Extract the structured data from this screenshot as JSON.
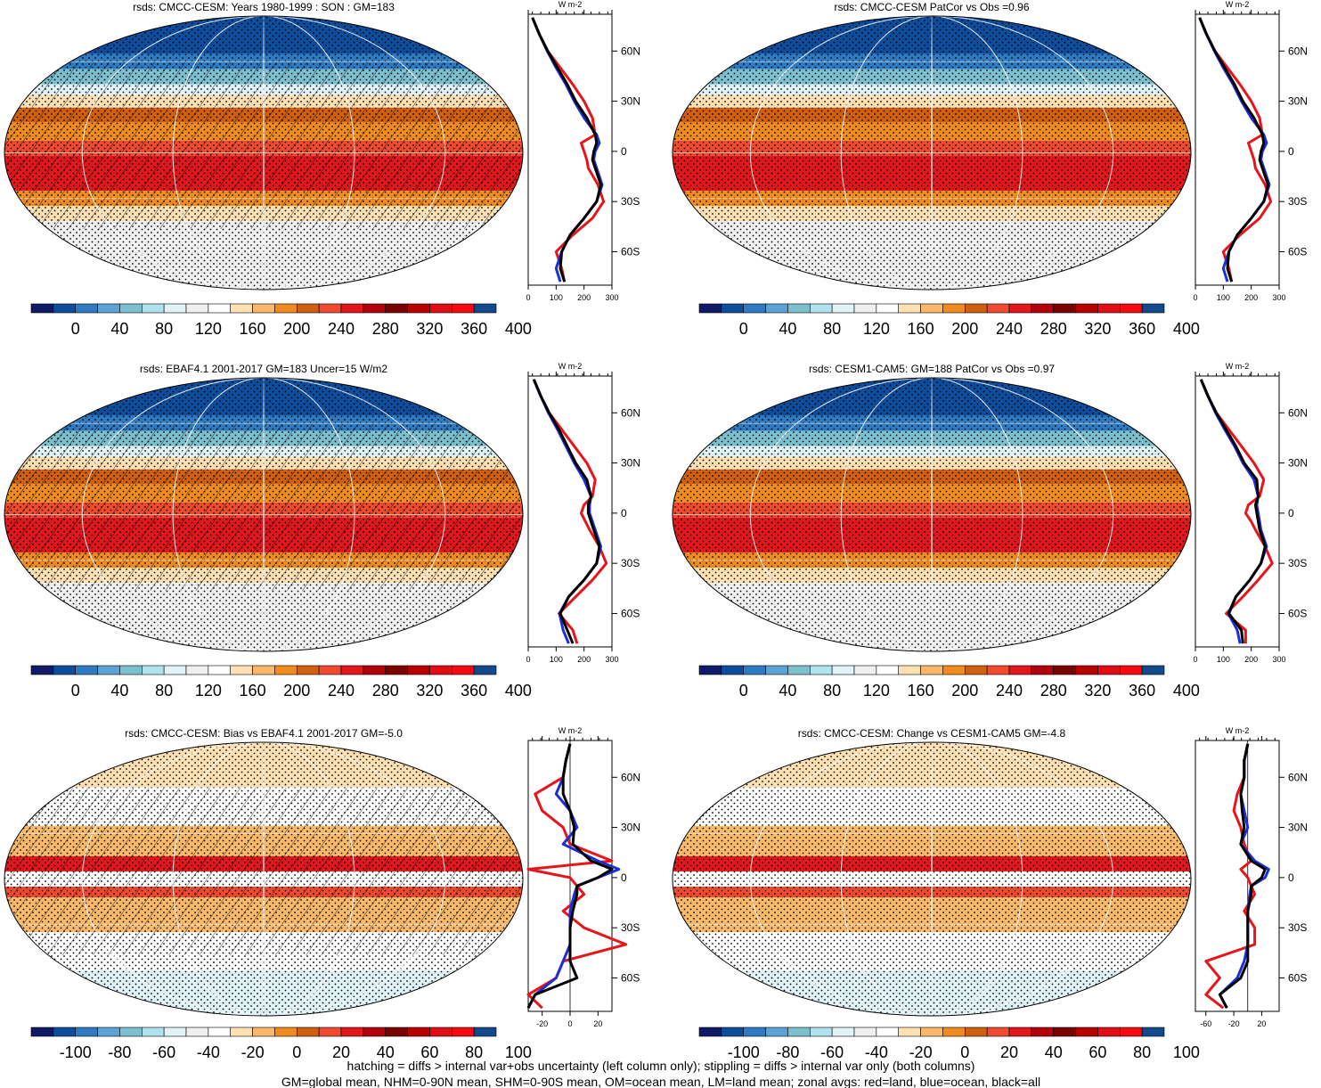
{
  "chart_data": [
    {
      "type": "heatmap",
      "title": "rsds: CMCC-CESM: Years 1980-1999 : SON : GM=183",
      "colorbar": [
        "0",
        "40",
        "80",
        "120",
        "160",
        "200",
        "240",
        "280",
        "320",
        "360",
        "400"
      ],
      "zonal_xticks": [
        "0",
        "100",
        "200",
        "300"
      ],
      "zonal_unit": "W m-2",
      "lat_labels": [
        "60N",
        "30N",
        "0",
        "30S",
        "60S"
      ],
      "hatching": true,
      "zonal": {
        "lat": [
          80,
          70,
          60,
          50,
          40,
          30,
          20,
          10,
          5,
          0,
          -5,
          -10,
          -20,
          -30,
          -40,
          -50,
          -60,
          -70,
          -78
        ],
        "all": [
          15,
          40,
          70,
          105,
          140,
          170,
          210,
          240,
          245,
          235,
          230,
          240,
          260,
          245,
          200,
          150,
          120,
          115,
          130
        ],
        "land": [
          15,
          40,
          70,
          115,
          160,
          200,
          230,
          240,
          190,
          200,
          210,
          215,
          250,
          270,
          230,
          160,
          100,
          120,
          130
        ],
        "ocean": [
          15,
          40,
          68,
          100,
          135,
          165,
          200,
          245,
          255,
          240,
          235,
          245,
          265,
          245,
          200,
          150,
          120,
          100,
          115
        ]
      }
    },
    {
      "type": "heatmap",
      "title": "rsds: CMCC-CESM PatCor vs Obs =0.96",
      "colorbar": [
        "0",
        "40",
        "80",
        "120",
        "160",
        "200",
        "240",
        "280",
        "320",
        "360",
        "400"
      ],
      "zonal_xticks": [
        "0",
        "100",
        "200",
        "300"
      ],
      "zonal_unit": "W m-2",
      "lat_labels": [
        "60N",
        "30N",
        "0",
        "30S",
        "60S"
      ],
      "hatching": false,
      "zonal": {
        "lat": [
          80,
          70,
          60,
          50,
          40,
          30,
          20,
          10,
          5,
          0,
          -5,
          -10,
          -20,
          -30,
          -40,
          -50,
          -60,
          -70,
          -78
        ],
        "all": [
          15,
          40,
          70,
          105,
          140,
          170,
          210,
          240,
          245,
          235,
          230,
          240,
          260,
          245,
          200,
          150,
          120,
          115,
          130
        ],
        "land": [
          15,
          40,
          70,
          115,
          160,
          200,
          230,
          240,
          190,
          200,
          210,
          215,
          250,
          270,
          230,
          160,
          100,
          120,
          130
        ],
        "ocean": [
          15,
          40,
          68,
          100,
          135,
          165,
          200,
          245,
          255,
          240,
          235,
          245,
          265,
          245,
          200,
          150,
          120,
          100,
          115
        ]
      }
    },
    {
      "type": "heatmap",
      "title": "rsds: EBAF4.1 2001-2017 GM=183 Uncer=15 W/m2",
      "colorbar": [
        "0",
        "40",
        "80",
        "120",
        "160",
        "200",
        "240",
        "280",
        "320",
        "360",
        "400"
      ],
      "zonal_xticks": [
        "0",
        "100",
        "200",
        "300"
      ],
      "zonal_unit": "W m-2",
      "lat_labels": [
        "60N",
        "30N",
        "0",
        "30S",
        "60S"
      ],
      "hatching": true,
      "zonal": {
        "lat": [
          80,
          70,
          60,
          50,
          40,
          30,
          20,
          10,
          5,
          0,
          -5,
          -10,
          -20,
          -30,
          -40,
          -50,
          -60,
          -70,
          -78
        ],
        "all": [
          20,
          45,
          75,
          110,
          140,
          170,
          210,
          225,
          215,
          215,
          225,
          235,
          255,
          245,
          200,
          145,
          115,
          140,
          160
        ],
        "land": [
          20,
          45,
          75,
          120,
          165,
          210,
          240,
          230,
          200,
          190,
          205,
          220,
          255,
          280,
          230,
          170,
          110,
          160,
          175
        ],
        "ocean": [
          20,
          45,
          72,
          105,
          135,
          165,
          200,
          225,
          220,
          220,
          230,
          240,
          260,
          245,
          200,
          145,
          112,
          125,
          145
        ]
      }
    },
    {
      "type": "heatmap",
      "title": "rsds: CESM1-CAM5: GM=188 PatCor vs Obs =0.97",
      "colorbar": [
        "0",
        "40",
        "80",
        "120",
        "160",
        "200",
        "240",
        "280",
        "320",
        "360",
        "400"
      ],
      "zonal_xticks": [
        "0",
        "100",
        "200",
        "300"
      ],
      "zonal_unit": "W m-2",
      "lat_labels": [
        "60N",
        "30N",
        "0",
        "30S",
        "60S"
      ],
      "hatching": false,
      "zonal": {
        "lat": [
          80,
          70,
          60,
          50,
          40,
          30,
          20,
          10,
          5,
          0,
          -5,
          -10,
          -20,
          -30,
          -40,
          -50,
          -60,
          -70,
          -78
        ],
        "all": [
          20,
          45,
          75,
          110,
          145,
          175,
          220,
          225,
          215,
          220,
          225,
          230,
          250,
          235,
          195,
          145,
          120,
          165,
          170
        ],
        "land": [
          20,
          45,
          75,
          120,
          165,
          210,
          245,
          230,
          190,
          180,
          200,
          215,
          250,
          275,
          225,
          170,
          110,
          180,
          180
        ],
        "ocean": [
          20,
          45,
          72,
          105,
          140,
          170,
          210,
          225,
          220,
          225,
          230,
          235,
          255,
          235,
          195,
          145,
          118,
          150,
          160
        ]
      }
    },
    {
      "type": "heatmap",
      "title": "rsds: CMCC-CESM: Bias vs EBAF4.1 2001-2017  GM=-5.0",
      "colorbar": [
        "-100",
        "-80",
        "-60",
        "-40",
        "-20",
        "0",
        "20",
        "40",
        "60",
        "80",
        "100"
      ],
      "zonal_xticks": [
        "-20",
        "0",
        "20"
      ],
      "zonal_unit": "W m-2",
      "lat_labels": [
        "60N",
        "30N",
        "0",
        "30S",
        "60S"
      ],
      "hatching": true,
      "zonal": {
        "lat": [
          80,
          70,
          60,
          50,
          40,
          30,
          20,
          10,
          5,
          0,
          -5,
          -10,
          -20,
          -30,
          -40,
          -50,
          -60,
          -70,
          -78
        ],
        "all": [
          0,
          -3,
          -5,
          -5,
          0,
          3,
          2,
          15,
          30,
          20,
          5,
          5,
          2,
          0,
          0,
          0,
          5,
          -25,
          -30
        ],
        "land": [
          0,
          -3,
          -5,
          -25,
          -20,
          -5,
          0,
          30,
          -30,
          0,
          5,
          10,
          -5,
          10,
          40,
          -5,
          -10,
          -30,
          -20
        ],
        "ocean": [
          0,
          -3,
          -5,
          -10,
          0,
          5,
          -5,
          20,
          35,
          20,
          5,
          3,
          0,
          0,
          0,
          -5,
          -10,
          -25,
          -30
        ]
      }
    },
    {
      "type": "heatmap",
      "title": "rsds: CMCC-CESM: Change vs CESM1-CAM5 GM=-4.8",
      "colorbar": [
        "-100",
        "-80",
        "-60",
        "-40",
        "-20",
        "0",
        "20",
        "40",
        "60",
        "80",
        "100"
      ],
      "zonal_xticks": [
        "-60",
        "-20",
        "20"
      ],
      "zonal_unit": "W m-2",
      "lat_labels": [
        "60N",
        "30N",
        "0",
        "30S",
        "60S"
      ],
      "hatching": false,
      "zonal": {
        "lat": [
          80,
          70,
          60,
          50,
          40,
          30,
          20,
          10,
          5,
          0,
          -5,
          -10,
          -20,
          -30,
          -40,
          -50,
          -60,
          -70,
          -78
        ],
        "all": [
          0,
          -5,
          -5,
          -10,
          -8,
          -5,
          -10,
          5,
          25,
          20,
          5,
          5,
          0,
          0,
          0,
          0,
          -10,
          -40,
          -30
        ],
        "land": [
          0,
          -5,
          -5,
          -15,
          -20,
          -10,
          -5,
          5,
          -10,
          0,
          5,
          10,
          -5,
          10,
          10,
          -60,
          -40,
          -60,
          -35
        ],
        "ocean": [
          0,
          -5,
          -5,
          -10,
          -5,
          0,
          -10,
          10,
          30,
          25,
          5,
          3,
          0,
          0,
          0,
          -5,
          -15,
          -40,
          -30
        ]
      }
    }
  ],
  "colorbar_colors": [
    "#101a66",
    "#0e4d9c",
    "#2e7bc1",
    "#5ca2d4",
    "#7cc0cf",
    "#b0e3ee",
    "#e0f3f8",
    "#f0f0f0",
    "#ffffff",
    "#fee0b2",
    "#f9b96b",
    "#f08c1f",
    "#d06010",
    "#ef4a30",
    "#e0181d",
    "#b2000d",
    "#7a0000",
    "#b80000",
    "#e10d16",
    "#f50a12",
    "#144a8c"
  ],
  "footer": {
    "line1": "hatching = diffs > internal var+obs uncertainty (left column only); stippling = diffs > internal var only (both columns)",
    "line2": "GM=global mean, NHM=0-90N mean, SHM=0-90S mean, OM=ocean mean, LM=land mean; zonal avgs: red=land, blue=ocean, black=all"
  }
}
